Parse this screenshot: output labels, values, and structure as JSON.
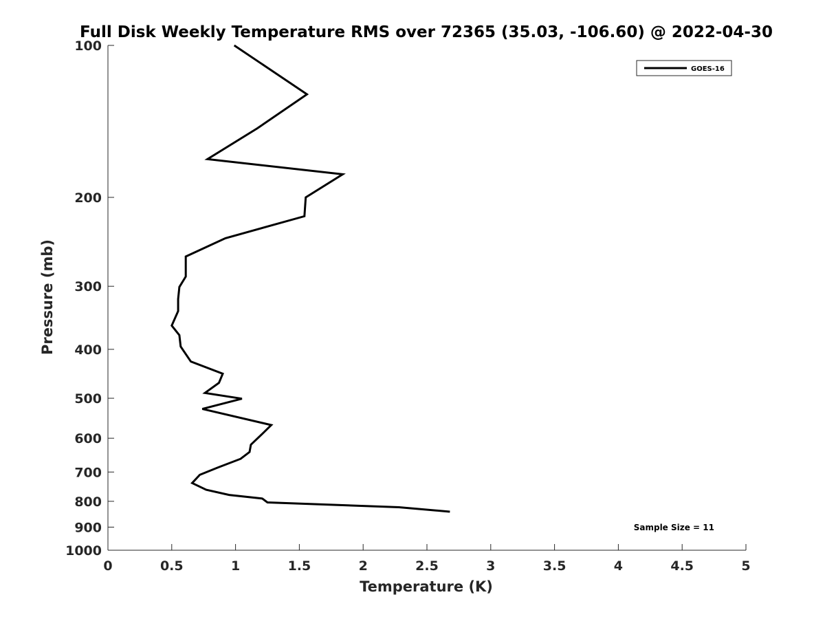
{
  "chart_data": {
    "type": "line",
    "title": "Full Disk Weekly Temperature RMS over 72365 (35.03, -106.60) @ 2022-04-30",
    "xlabel": "Temperature (K)",
    "ylabel": "Pressure (mb)",
    "xlim": [
      0,
      5
    ],
    "ylim": [
      100,
      1000
    ],
    "y_scale": "log",
    "y_reversed": true,
    "grid": false,
    "legend_position": "top-right",
    "x_ticks": [
      0,
      0.5,
      1,
      1.5,
      2,
      2.5,
      3,
      3.5,
      4,
      4.5,
      5
    ],
    "x_tick_labels": [
      "0",
      "0.5",
      "1",
      "1.5",
      "2",
      "2.5",
      "3",
      "3.5",
      "4",
      "4.5",
      "5"
    ],
    "y_ticks": [
      100,
      200,
      300,
      400,
      500,
      600,
      700,
      800,
      900,
      1000
    ],
    "y_tick_labels": [
      "100",
      "200",
      "300",
      "400",
      "500",
      "600",
      "700",
      "800",
      "900",
      "1000"
    ],
    "series": [
      {
        "name": "GOES-16",
        "color": "#000000",
        "x": [
          0.99,
          1.56,
          1.17,
          0.78,
          1.84,
          1.55,
          1.54,
          0.92,
          0.61,
          0.61,
          0.56,
          0.55,
          0.55,
          0.5,
          0.56,
          0.57,
          0.65,
          0.9,
          0.87,
          0.76,
          1.05,
          0.74,
          1.28,
          1.21,
          1.12,
          1.11,
          1.04,
          0.86,
          0.72,
          0.66,
          0.77,
          0.95,
          1.21,
          1.25,
          2.28,
          2.68
        ],
        "y": [
          100,
          125,
          146,
          168,
          180,
          200,
          218,
          241,
          262,
          287,
          301,
          318,
          336,
          359,
          375,
          395,
          423,
          447,
          466,
          488,
          501,
          525,
          565,
          588,
          618,
          639,
          659,
          686,
          709,
          736,
          759,
          777,
          790,
          804,
          822,
          839
        ]
      }
    ],
    "annotations": {
      "sample_size": "Sample Size = 11"
    }
  }
}
